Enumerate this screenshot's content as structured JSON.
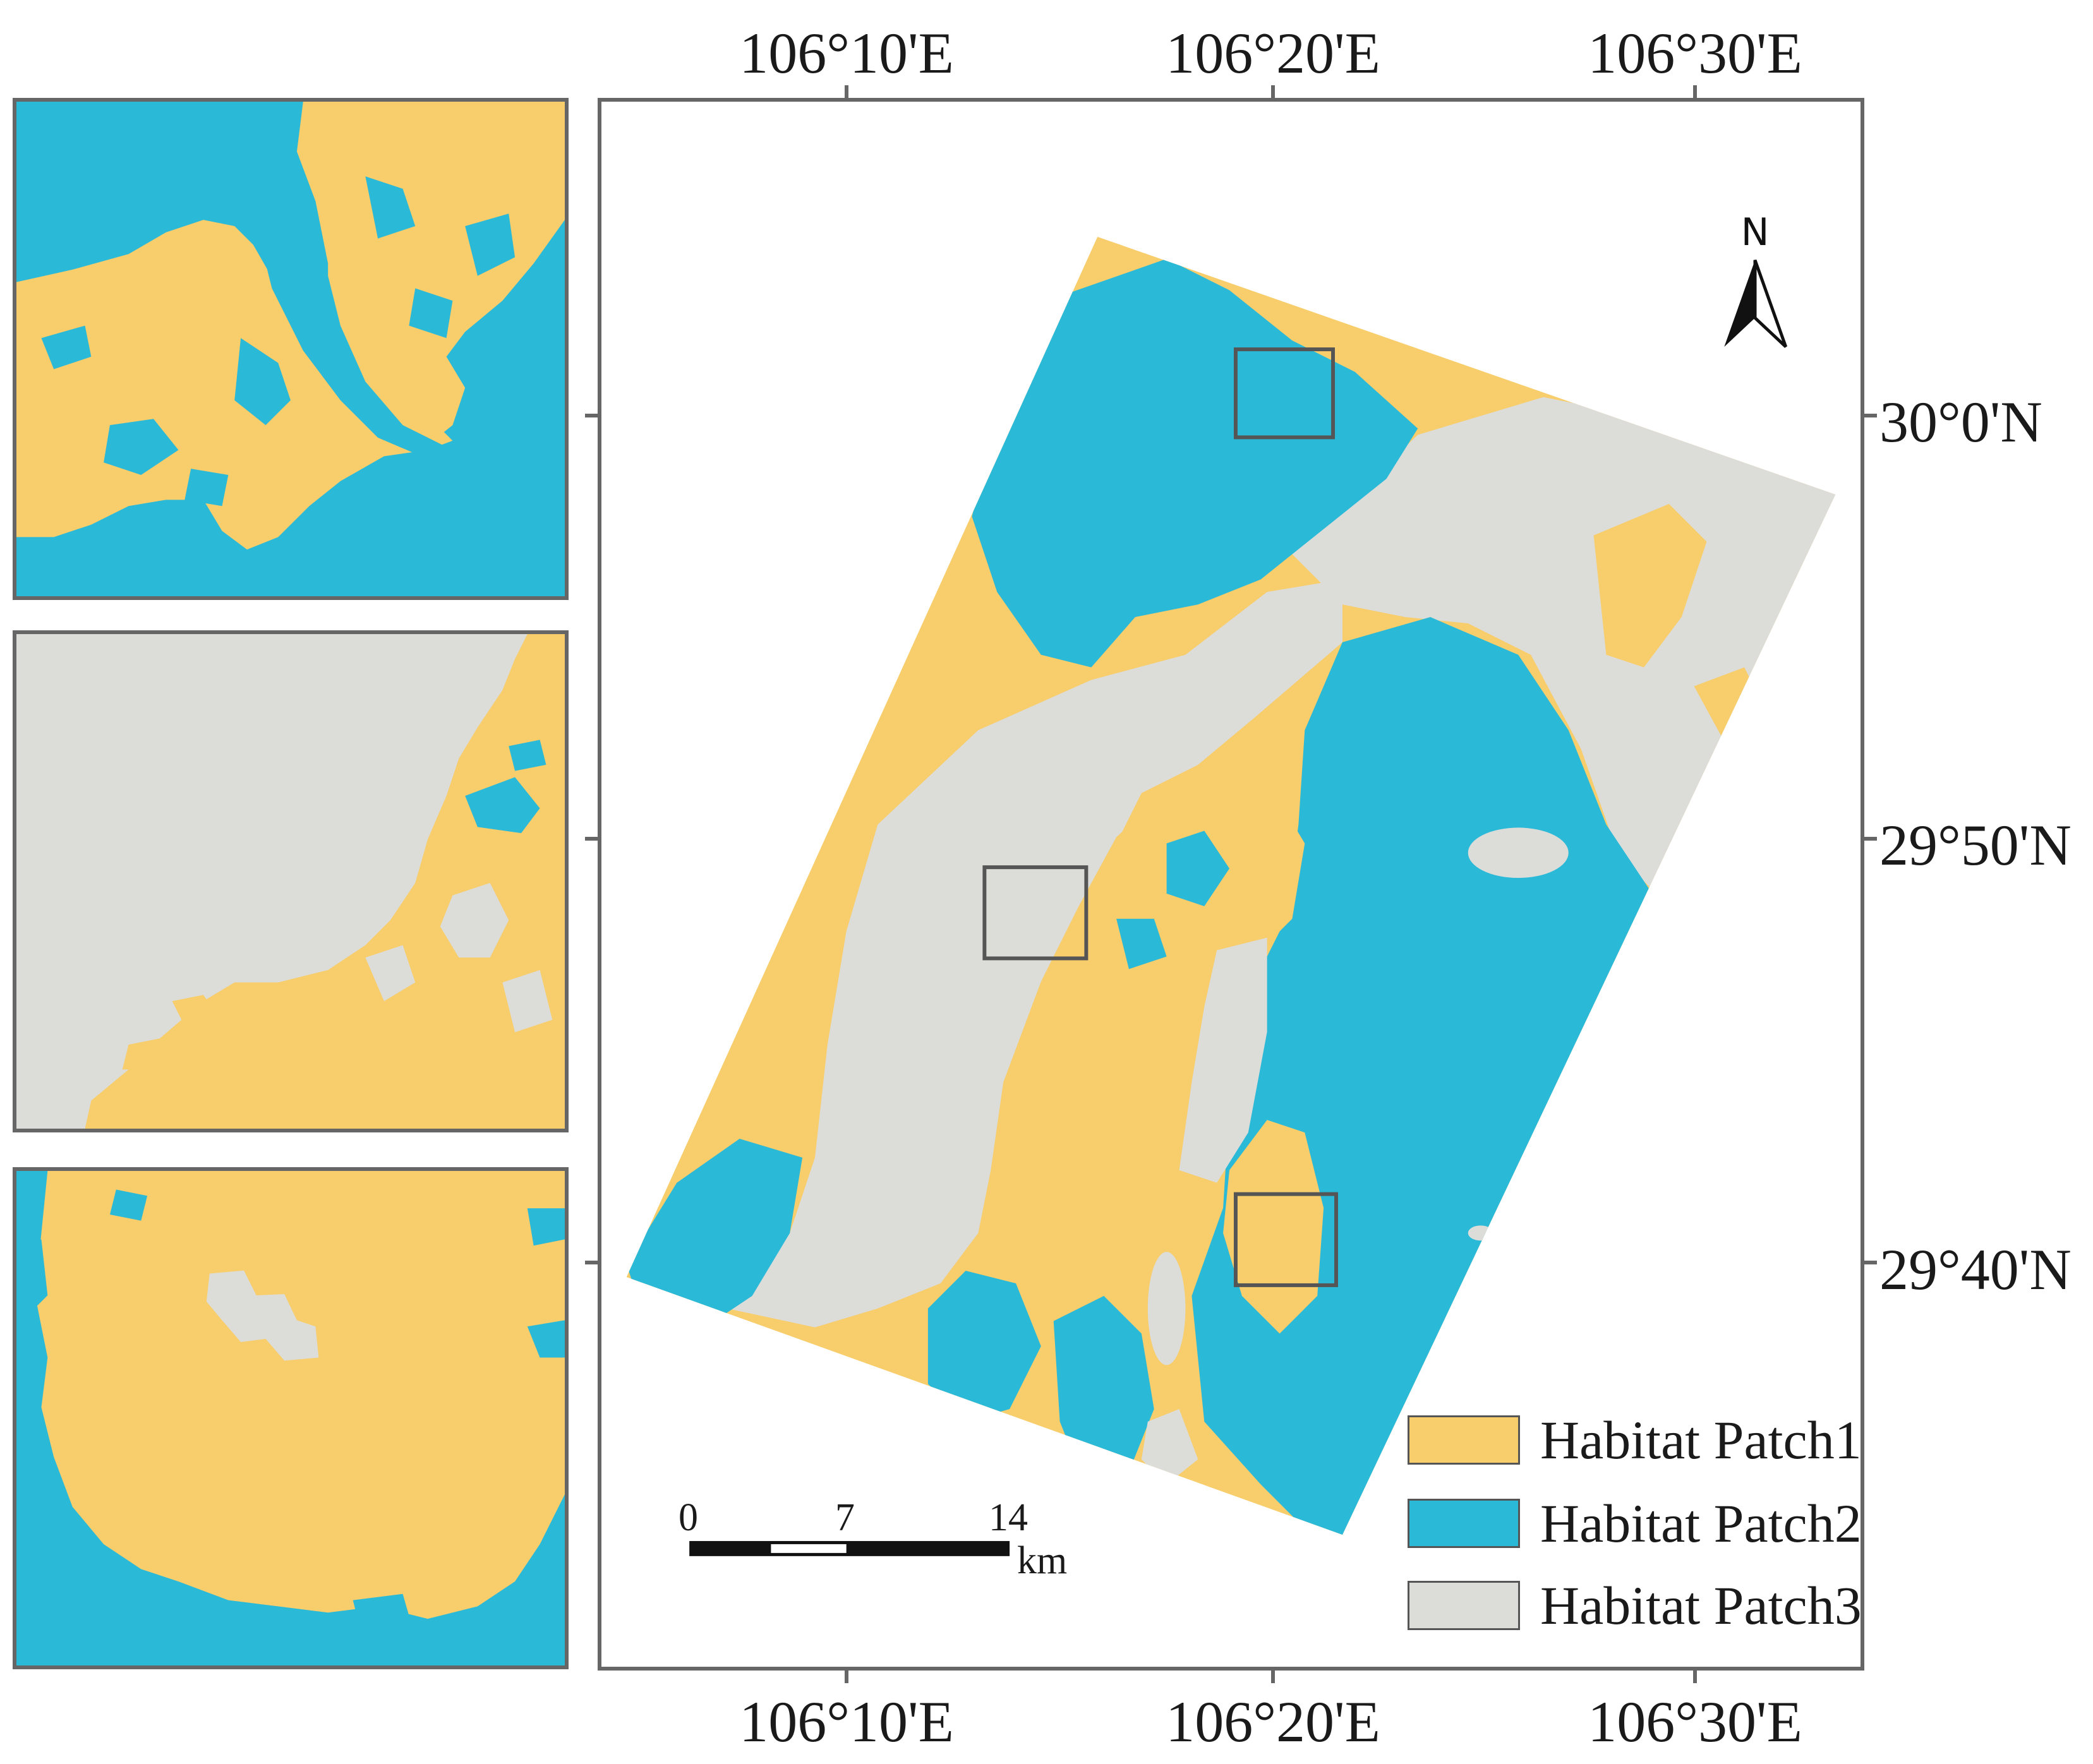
{
  "colors": {
    "habitat_patch1": "#f8cd6b",
    "habitat_patch2": "#2bb9d8",
    "habitat_patch3": "#dcdcd9",
    "frame": "#666666"
  },
  "axes": {
    "top_longitudes": [
      "106°10'E",
      "106°20'E",
      "106°30'E"
    ],
    "bottom_longitudes": [
      "106°10'E",
      "106°20'E",
      "106°30'E"
    ],
    "right_latitudes": [
      "30°0'N",
      "29°50'N",
      "29°40'N"
    ]
  },
  "north_arrow": {
    "label": "N",
    "icon": "north-arrow-icon"
  },
  "legend": [
    {
      "label": "Habitat Patch1",
      "color": "#f8cd6b"
    },
    {
      "label": "Habitat Patch2",
      "color": "#2bb9d8"
    },
    {
      "label": "Habitat Patch3",
      "color": "#dcdcd9"
    }
  ],
  "scale_bar": {
    "ticks": [
      "0",
      "7",
      "14"
    ],
    "unit": "km"
  },
  "insets": [
    {
      "dominant": "Habitat Patch2"
    },
    {
      "dominant": "Habitat Patch3"
    },
    {
      "dominant": "Habitat Patch1"
    }
  ]
}
